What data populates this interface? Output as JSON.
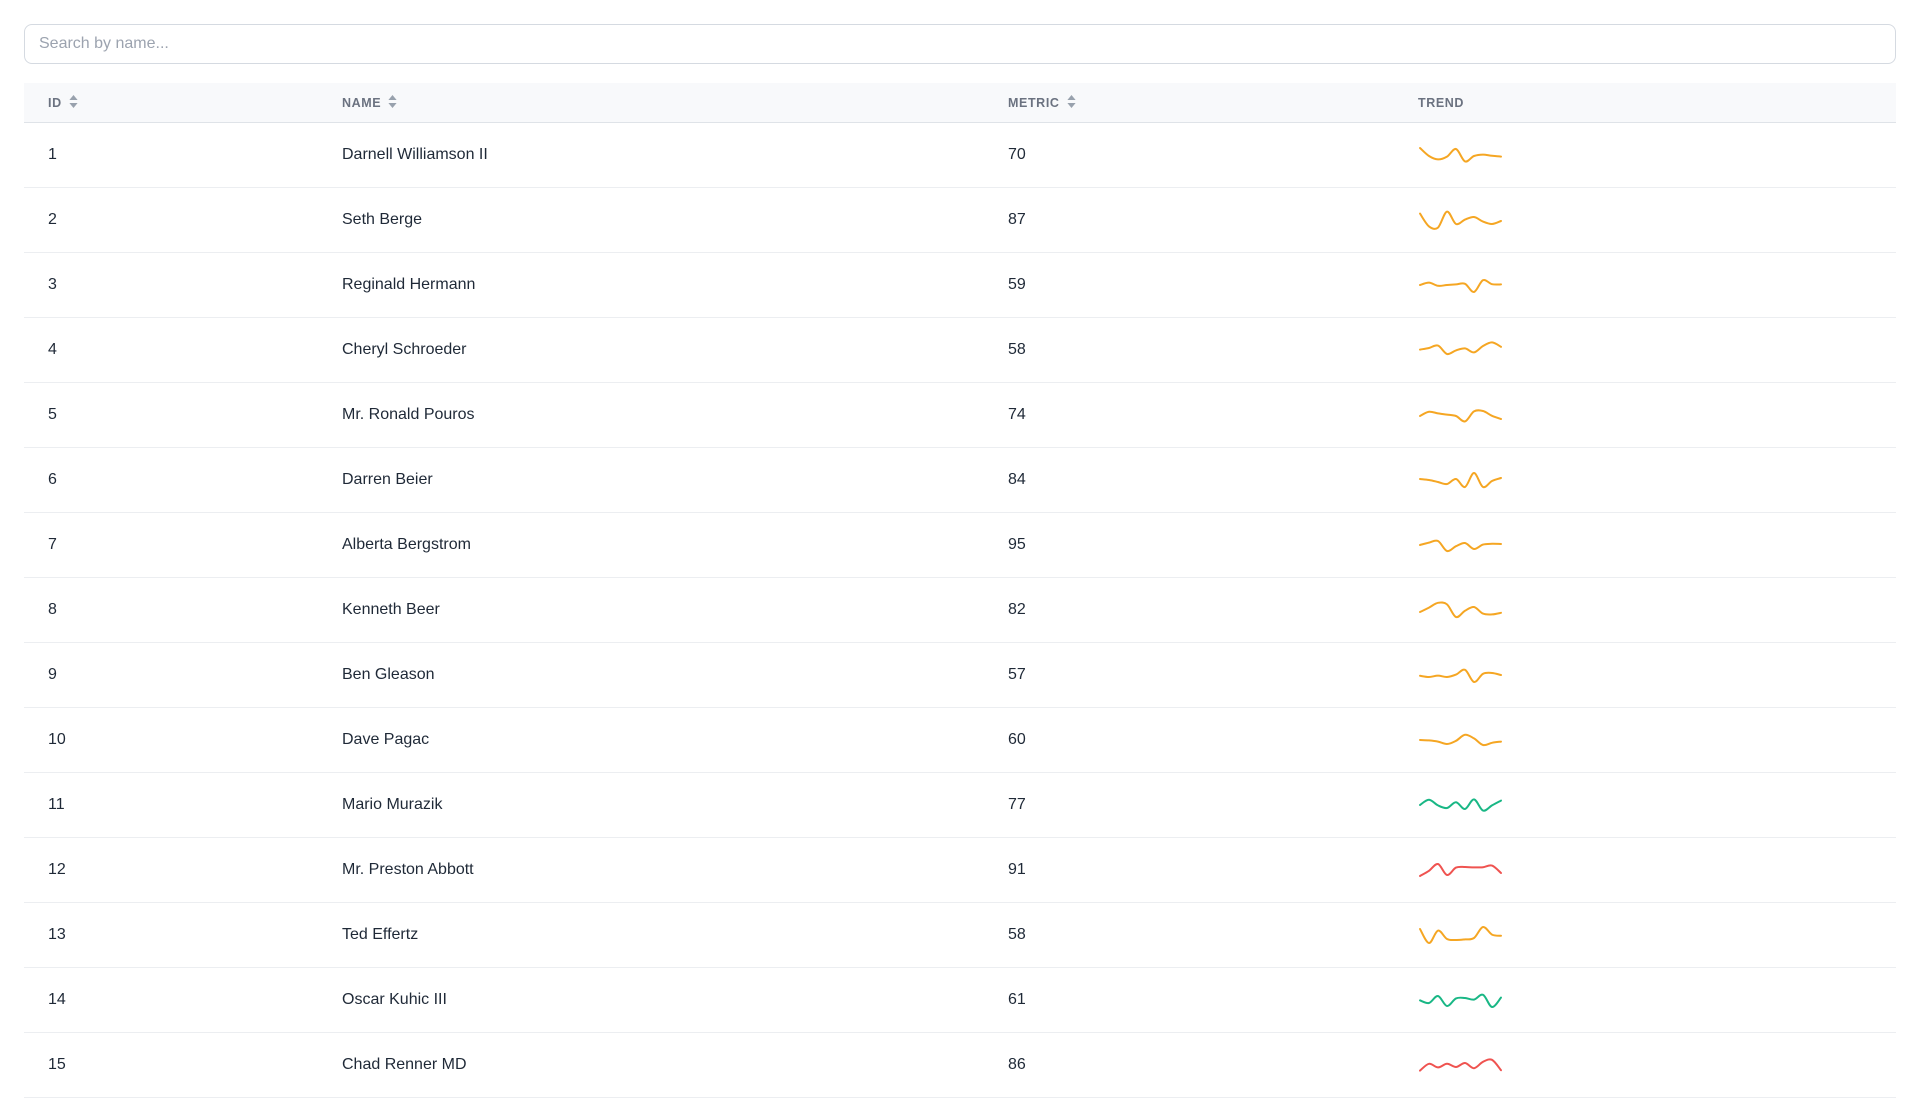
{
  "search": {
    "placeholder": "Search by name..."
  },
  "table": {
    "columns": [
      {
        "key": "id",
        "label": "ID",
        "sortable": true
      },
      {
        "key": "name",
        "label": "NAME",
        "sortable": true
      },
      {
        "key": "metric",
        "label": "METRIC",
        "sortable": true
      },
      {
        "key": "trend",
        "label": "TREND",
        "sortable": false
      }
    ],
    "rows": [
      {
        "id": "1",
        "name": "Darnell Williamson II",
        "metric": "70",
        "trend": {
          "color": "#f5a623",
          "points": [
            0.85,
            0.45,
            0.28,
            0.42,
            0.8,
            0.18,
            0.45,
            0.52,
            0.46,
            0.42
          ]
        }
      },
      {
        "id": "2",
        "name": "Seth Berge",
        "metric": "87",
        "trend": {
          "color": "#f5a623",
          "points": [
            0.82,
            0.18,
            0.12,
            0.92,
            0.3,
            0.52,
            0.65,
            0.42,
            0.3,
            0.45
          ]
        }
      },
      {
        "id": "3",
        "name": "Reginald Hermann",
        "metric": "59",
        "trend": {
          "color": "#f5a623",
          "points": [
            0.5,
            0.62,
            0.46,
            0.5,
            0.53,
            0.56,
            0.15,
            0.74,
            0.54,
            0.53
          ]
        }
      },
      {
        "id": "4",
        "name": "Cheryl Schroeder",
        "metric": "58",
        "trend": {
          "color": "#f5a623",
          "points": [
            0.52,
            0.6,
            0.72,
            0.3,
            0.48,
            0.58,
            0.38,
            0.7,
            0.88,
            0.66
          ]
        }
      },
      {
        "id": "5",
        "name": "Mr. Ronald Pouros",
        "metric": "74",
        "trend": {
          "color": "#f5a623",
          "points": [
            0.45,
            0.66,
            0.58,
            0.52,
            0.45,
            0.18,
            0.68,
            0.7,
            0.46,
            0.3
          ]
        }
      },
      {
        "id": "6",
        "name": "Darren Beier",
        "metric": "84",
        "trend": {
          "color": "#f5a623",
          "points": [
            0.55,
            0.5,
            0.4,
            0.3,
            0.55,
            0.15,
            0.85,
            0.15,
            0.45,
            0.6
          ]
        }
      },
      {
        "id": "7",
        "name": "Alberta Bergstrom",
        "metric": "95",
        "trend": {
          "color": "#f5a623",
          "points": [
            0.5,
            0.62,
            0.7,
            0.2,
            0.44,
            0.6,
            0.3,
            0.52,
            0.56,
            0.55
          ]
        }
      },
      {
        "id": "8",
        "name": "Kenneth Beer",
        "metric": "82",
        "trend": {
          "color": "#f5a623",
          "points": [
            0.4,
            0.62,
            0.86,
            0.78,
            0.15,
            0.46,
            0.65,
            0.32,
            0.28,
            0.36
          ]
        }
      },
      {
        "id": "9",
        "name": "Ben Gleason",
        "metric": "57",
        "trend": {
          "color": "#f5a623",
          "points": [
            0.46,
            0.4,
            0.47,
            0.4,
            0.52,
            0.76,
            0.15,
            0.56,
            0.6,
            0.5
          ]
        }
      },
      {
        "id": "10",
        "name": "Dave Pagac",
        "metric": "60",
        "trend": {
          "color": "#f5a623",
          "points": [
            0.5,
            0.48,
            0.42,
            0.3,
            0.46,
            0.76,
            0.58,
            0.25,
            0.36,
            0.42
          ]
        }
      },
      {
        "id": "11",
        "name": "Mario Murazik",
        "metric": "77",
        "trend": {
          "color": "#19b785",
          "points": [
            0.5,
            0.76,
            0.48,
            0.35,
            0.64,
            0.3,
            0.78,
            0.22,
            0.48,
            0.72
          ]
        }
      },
      {
        "id": "12",
        "name": "Mr. Preston Abbott",
        "metric": "91",
        "trend": {
          "color": "#ef5350",
          "points": [
            0.2,
            0.46,
            0.8,
            0.25,
            0.62,
            0.65,
            0.63,
            0.64,
            0.72,
            0.35
          ]
        }
      },
      {
        "id": "13",
        "name": "Ted Effertz",
        "metric": "58",
        "trend": {
          "color": "#f5a623",
          "points": [
            0.8,
            0.1,
            0.72,
            0.3,
            0.25,
            0.28,
            0.35,
            0.9,
            0.52,
            0.46
          ]
        }
      },
      {
        "id": "14",
        "name": "Oscar Kuhic III",
        "metric": "61",
        "trend": {
          "color": "#19b785",
          "points": [
            0.48,
            0.35,
            0.7,
            0.2,
            0.58,
            0.6,
            0.52,
            0.76,
            0.15,
            0.62
          ]
        }
      },
      {
        "id": "15",
        "name": "Chad Renner MD",
        "metric": "86",
        "trend": {
          "color": "#ef5350",
          "points": [
            0.22,
            0.56,
            0.38,
            0.56,
            0.4,
            0.6,
            0.34,
            0.66,
            0.76,
            0.24
          ]
        }
      }
    ]
  },
  "colors": {
    "trend_up_orange": "#f5a623",
    "trend_green": "#19b785",
    "trend_red": "#ef5350",
    "header_bg": "#f8f9fb",
    "row_border": "#eceef1"
  }
}
